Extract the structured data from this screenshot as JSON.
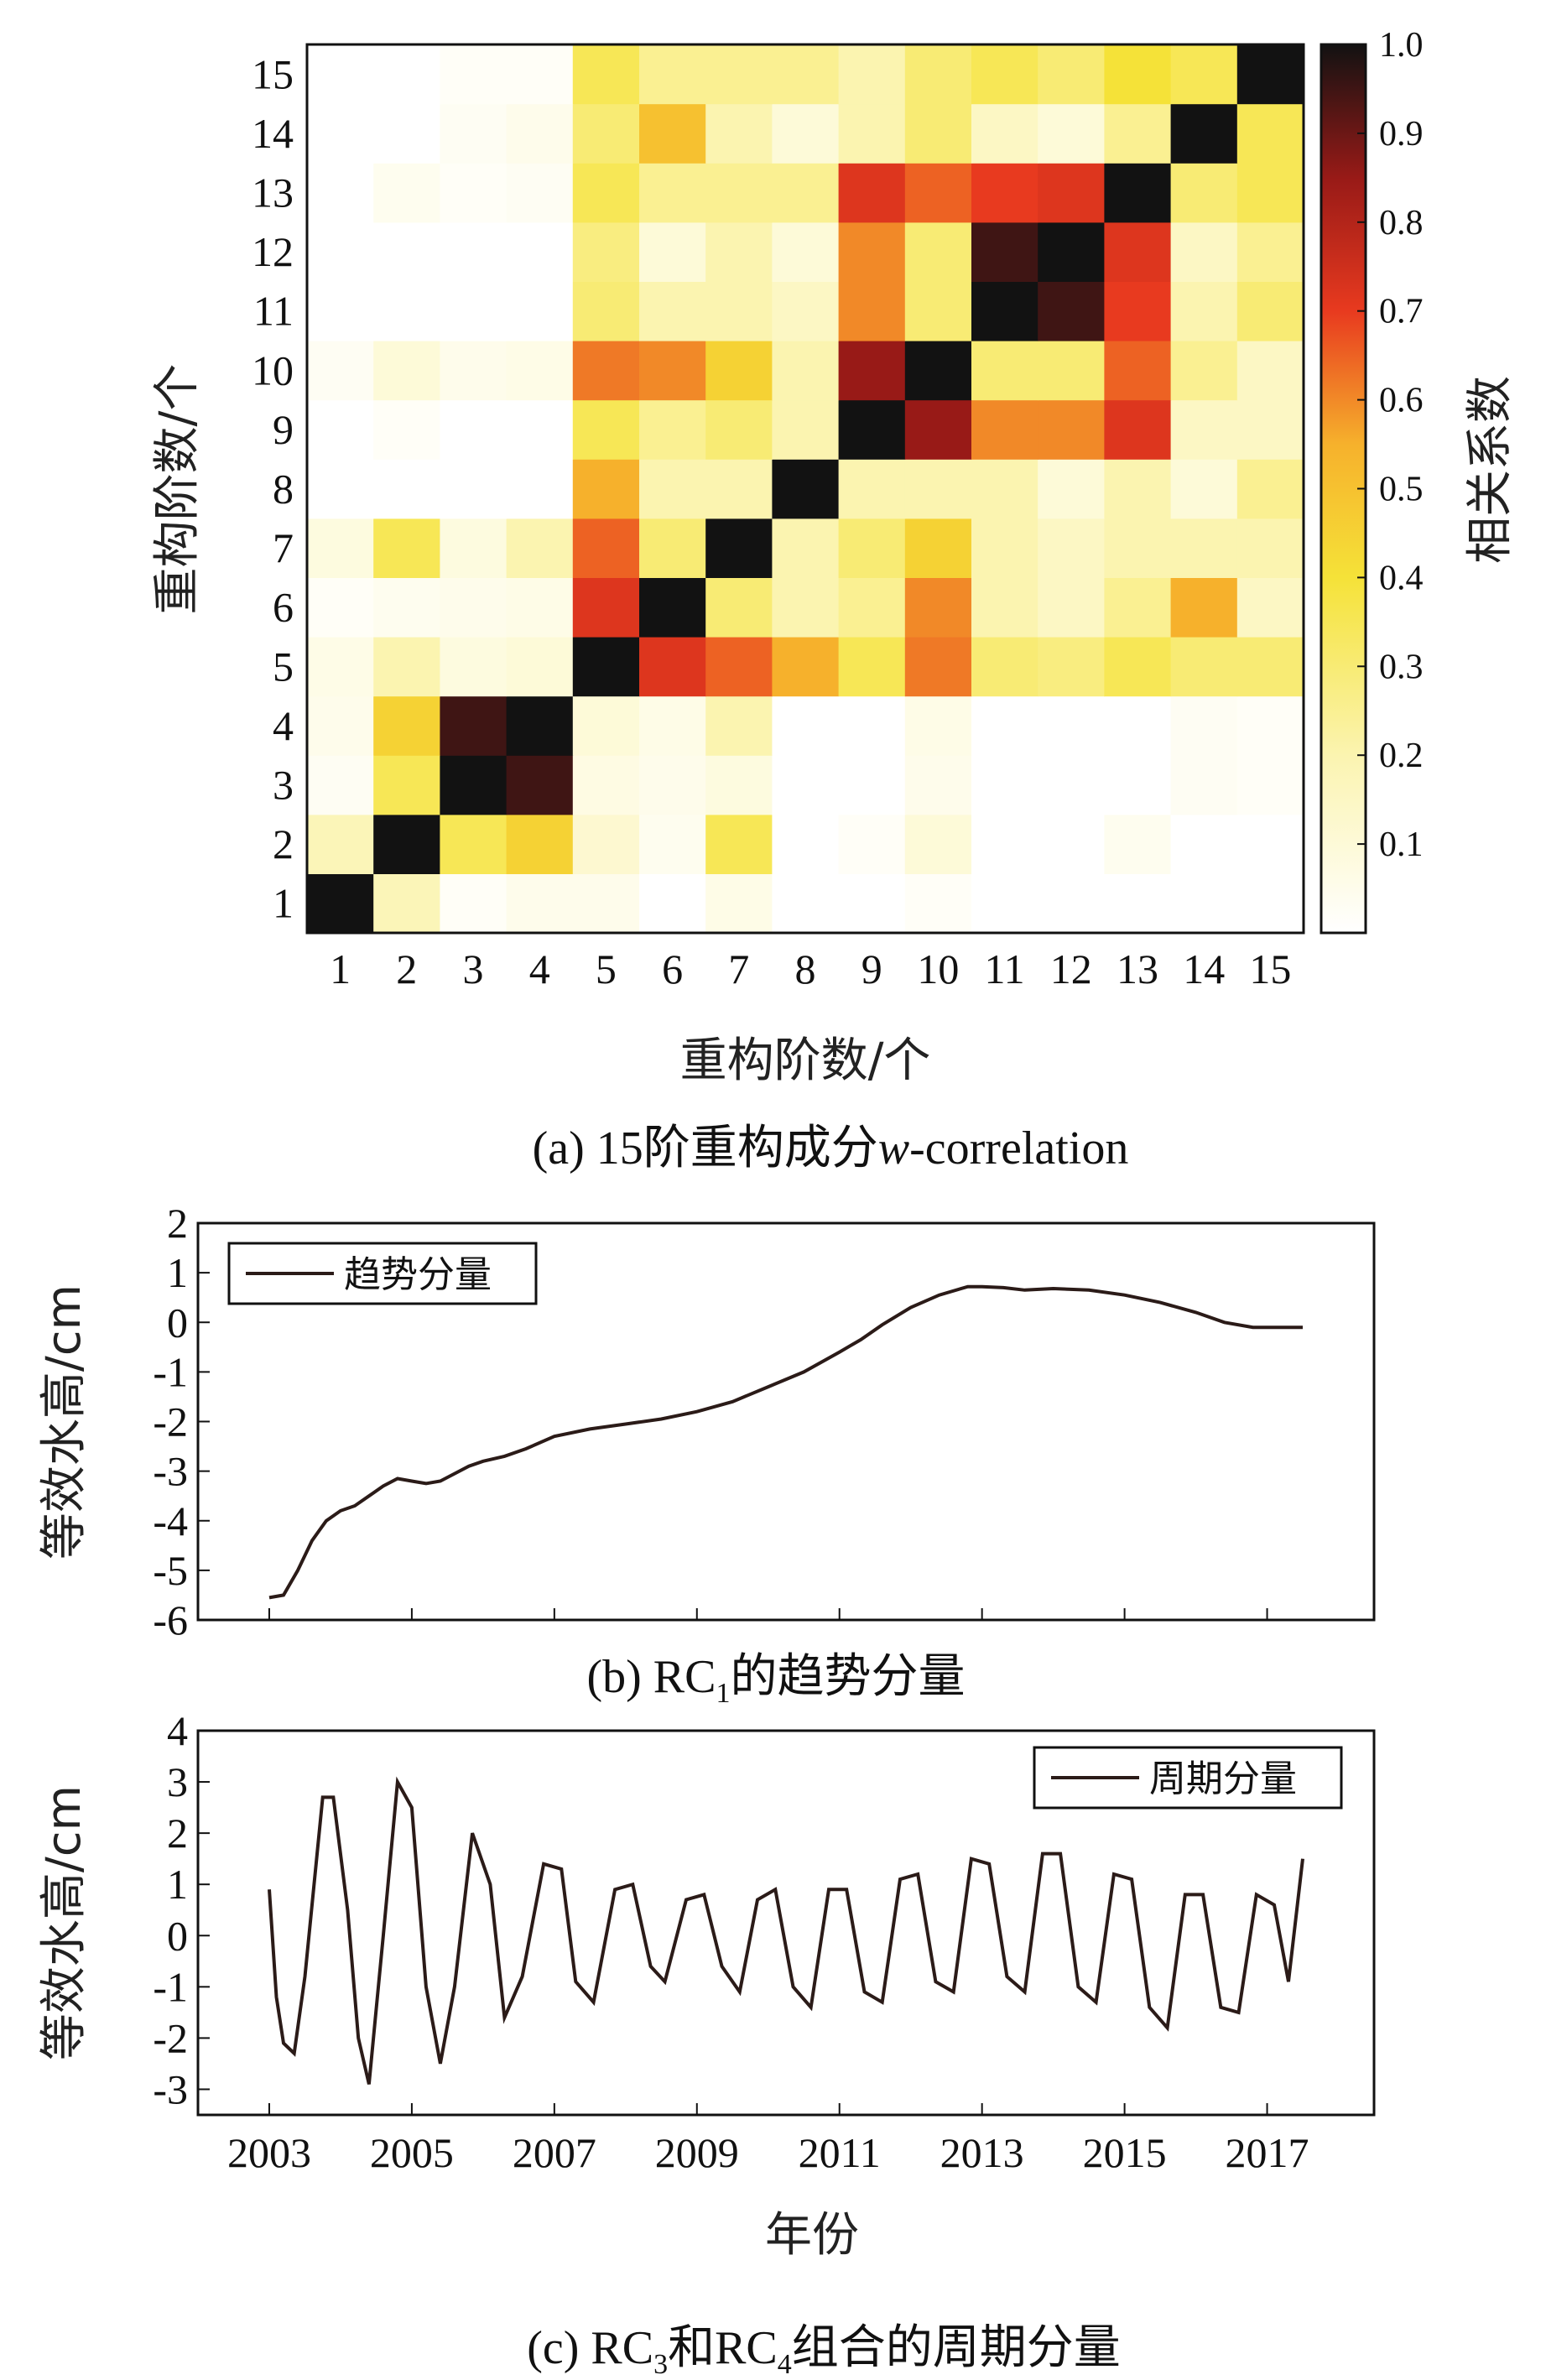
{
  "chart_data": [
    {
      "type": "heatmap",
      "caption": "(a) 15阶重构成分w-correlation",
      "caption_prefix": "(a) 15阶重构成分",
      "caption_italic": "w",
      "caption_suffix": "-correlation",
      "xlabel": "重构阶数/个",
      "ylabel": "重构阶数/个",
      "x_ticks": [
        "1",
        "2",
        "3",
        "4",
        "5",
        "6",
        "7",
        "8",
        "9",
        "10",
        "11",
        "12",
        "13",
        "14",
        "15"
      ],
      "y_ticks": [
        "1",
        "2",
        "3",
        "4",
        "5",
        "6",
        "7",
        "8",
        "9",
        "10",
        "11",
        "12",
        "13",
        "14",
        "15"
      ],
      "colorbar": {
        "label": "相关系数",
        "range": [
          0,
          1
        ],
        "ticks": [
          "0.1",
          "0.2",
          "0.3",
          "0.4",
          "0.5",
          "0.6",
          "0.7",
          "0.8",
          "0.9",
          "1.0"
        ]
      },
      "matrix": [
        [
          1.0,
          0.18,
          0.02,
          0.05,
          0.05,
          0.0,
          0.06,
          0.0,
          0.0,
          0.02,
          0.0,
          0.0,
          0.0,
          0.0,
          0.0
        ],
        [
          0.18,
          1.0,
          0.35,
          0.45,
          0.12,
          0.04,
          0.35,
          0.0,
          0.02,
          0.1,
          0.0,
          0.0,
          0.04,
          0.0,
          0.0
        ],
        [
          0.03,
          0.35,
          1.0,
          0.95,
          0.07,
          0.05,
          0.08,
          0.0,
          0.0,
          0.05,
          0.0,
          0.0,
          0.0,
          0.03,
          0.02
        ],
        [
          0.05,
          0.45,
          0.95,
          1.0,
          0.1,
          0.06,
          0.2,
          0.0,
          0.0,
          0.06,
          0.0,
          0.0,
          0.0,
          0.03,
          0.02
        ],
        [
          0.06,
          0.2,
          0.08,
          0.1,
          1.0,
          0.72,
          0.65,
          0.55,
          0.35,
          0.62,
          0.3,
          0.28,
          0.35,
          0.3,
          0.3
        ],
        [
          0.02,
          0.04,
          0.05,
          0.06,
          0.72,
          1.0,
          0.3,
          0.2,
          0.25,
          0.6,
          0.2,
          0.15,
          0.25,
          0.55,
          0.15
        ],
        [
          0.08,
          0.35,
          0.08,
          0.2,
          0.65,
          0.3,
          1.0,
          0.2,
          0.3,
          0.45,
          0.2,
          0.15,
          0.2,
          0.2,
          0.2
        ],
        [
          0.0,
          0.0,
          0.0,
          0.0,
          0.55,
          0.2,
          0.2,
          1.0,
          0.2,
          0.2,
          0.2,
          0.1,
          0.2,
          0.1,
          0.25
        ],
        [
          0.0,
          0.02,
          0.0,
          0.0,
          0.35,
          0.25,
          0.3,
          0.2,
          1.0,
          0.85,
          0.6,
          0.6,
          0.72,
          0.15,
          0.15
        ],
        [
          0.03,
          0.1,
          0.05,
          0.06,
          0.62,
          0.6,
          0.45,
          0.2,
          0.85,
          1.0,
          0.3,
          0.3,
          0.65,
          0.25,
          0.15
        ],
        [
          0.0,
          0.0,
          0.0,
          0.0,
          0.3,
          0.2,
          0.2,
          0.15,
          0.6,
          0.3,
          1.0,
          0.95,
          0.7,
          0.2,
          0.3
        ],
        [
          0.0,
          0.0,
          0.0,
          0.0,
          0.28,
          0.1,
          0.2,
          0.1,
          0.6,
          0.3,
          0.95,
          1.0,
          0.72,
          0.15,
          0.25
        ],
        [
          0.0,
          0.04,
          0.02,
          0.03,
          0.35,
          0.25,
          0.25,
          0.25,
          0.72,
          0.65,
          0.7,
          0.72,
          1.0,
          0.3,
          0.35
        ],
        [
          0.0,
          0.0,
          0.03,
          0.05,
          0.3,
          0.5,
          0.2,
          0.1,
          0.2,
          0.3,
          0.15,
          0.1,
          0.25,
          1.0,
          0.35
        ],
        [
          0.0,
          0.0,
          0.02,
          0.02,
          0.35,
          0.25,
          0.25,
          0.25,
          0.2,
          0.3,
          0.35,
          0.3,
          0.4,
          0.35,
          1.0
        ]
      ]
    },
    {
      "type": "line",
      "caption": "(b) RC1的趋势分量",
      "caption_prefix": "(b) RC",
      "caption_sub": "1",
      "caption_suffix": "的趋势分量",
      "ylabel": "等效水高/cm",
      "legend": "趋势分量",
      "ylim": [
        -6,
        2
      ],
      "y_ticks": [
        "-6",
        "-5",
        "-4",
        "-3",
        "-2",
        "-1",
        "0",
        "1",
        "2"
      ],
      "xlim": [
        2002.0,
        2018.5
      ],
      "x_ticks": [
        2003,
        2005,
        2007,
        2009,
        2011,
        2013,
        2015,
        2017
      ],
      "series": [
        {
          "name": "趋势分量",
          "x": [
            2003.0,
            2003.2,
            2003.4,
            2003.6,
            2003.8,
            2004.0,
            2004.2,
            2004.4,
            2004.6,
            2004.8,
            2005.0,
            2005.2,
            2005.4,
            2005.6,
            2005.8,
            2006.0,
            2006.3,
            2006.6,
            2007.0,
            2007.5,
            2008.0,
            2008.5,
            2009.0,
            2009.5,
            2010.0,
            2010.5,
            2011.0,
            2011.3,
            2011.6,
            2012.0,
            2012.4,
            2012.8,
            2013.0,
            2013.3,
            2013.6,
            2014.0,
            2014.5,
            2015.0,
            2015.5,
            2016.0,
            2016.4,
            2016.8,
            2017.2,
            2017.5
          ],
          "y": [
            -5.55,
            -5.5,
            -5.0,
            -4.4,
            -4.0,
            -3.8,
            -3.7,
            -3.5,
            -3.3,
            -3.15,
            -3.2,
            -3.25,
            -3.2,
            -3.05,
            -2.9,
            -2.8,
            -2.7,
            -2.55,
            -2.3,
            -2.15,
            -2.05,
            -1.95,
            -1.8,
            -1.6,
            -1.3,
            -1.0,
            -0.6,
            -0.35,
            -0.05,
            0.3,
            0.55,
            0.72,
            0.72,
            0.7,
            0.65,
            0.68,
            0.65,
            0.55,
            0.4,
            0.2,
            0.0,
            -0.1,
            -0.1,
            -0.1
          ]
        }
      ]
    },
    {
      "type": "line",
      "caption": "(c) RC3和RC4组合的周期分量",
      "caption_p1": "(c) RC",
      "caption_s1": "3",
      "caption_p2": "和RC",
      "caption_s2": "4",
      "caption_p3": "组合的周期分量",
      "ylabel": "等效水高/cm",
      "xlabel": "年份",
      "legend": "周期分量",
      "ylim": [
        -3.5,
        4
      ],
      "y_ticks": [
        "-3",
        "-2",
        "-1",
        "0",
        "1",
        "2",
        "3",
        "4"
      ],
      "xlim": [
        2002.0,
        2018.5
      ],
      "x_ticks": [
        "2003",
        "2005",
        "2007",
        "2009",
        "2011",
        "2013",
        "2015",
        "2017"
      ],
      "series": [
        {
          "name": "周期分量",
          "x": [
            2003.0,
            2003.1,
            2003.2,
            2003.35,
            2003.5,
            2003.75,
            2003.9,
            2004.1,
            2004.25,
            2004.4,
            2004.6,
            2004.8,
            2005.0,
            2005.2,
            2005.4,
            2005.6,
            2005.85,
            2006.1,
            2006.3,
            2006.55,
            2006.85,
            2007.1,
            2007.3,
            2007.55,
            2007.85,
            2008.1,
            2008.35,
            2008.55,
            2008.85,
            2009.1,
            2009.35,
            2009.6,
            2009.85,
            2010.1,
            2010.35,
            2010.6,
            2010.85,
            2011.1,
            2011.35,
            2011.6,
            2011.85,
            2012.1,
            2012.35,
            2012.6,
            2012.85,
            2013.1,
            2013.35,
            2013.6,
            2013.85,
            2014.1,
            2014.35,
            2014.6,
            2014.85,
            2015.1,
            2015.35,
            2015.6,
            2015.85,
            2016.1,
            2016.35,
            2016.6,
            2016.85,
            2017.1,
            2017.3,
            2017.5
          ],
          "y": [
            0.9,
            -1.2,
            -2.1,
            -2.3,
            -0.8,
            2.7,
            2.7,
            0.5,
            -2.0,
            -2.9,
            0.0,
            3.0,
            2.5,
            -1.0,
            -2.5,
            -1.0,
            2.0,
            1.0,
            -1.6,
            -0.8,
            1.4,
            1.3,
            -0.9,
            -1.3,
            0.9,
            1.0,
            -0.6,
            -0.9,
            0.7,
            0.8,
            -0.6,
            -1.1,
            0.7,
            0.9,
            -1.0,
            -1.4,
            0.9,
            0.9,
            -1.1,
            -1.3,
            1.1,
            1.2,
            -0.9,
            -1.1,
            1.5,
            1.4,
            -0.8,
            -1.1,
            1.6,
            1.6,
            -1.0,
            -1.3,
            1.2,
            1.1,
            -1.4,
            -1.8,
            0.8,
            0.8,
            -1.4,
            -1.5,
            0.8,
            0.6,
            -0.9,
            1.5
          ]
        }
      ]
    }
  ]
}
